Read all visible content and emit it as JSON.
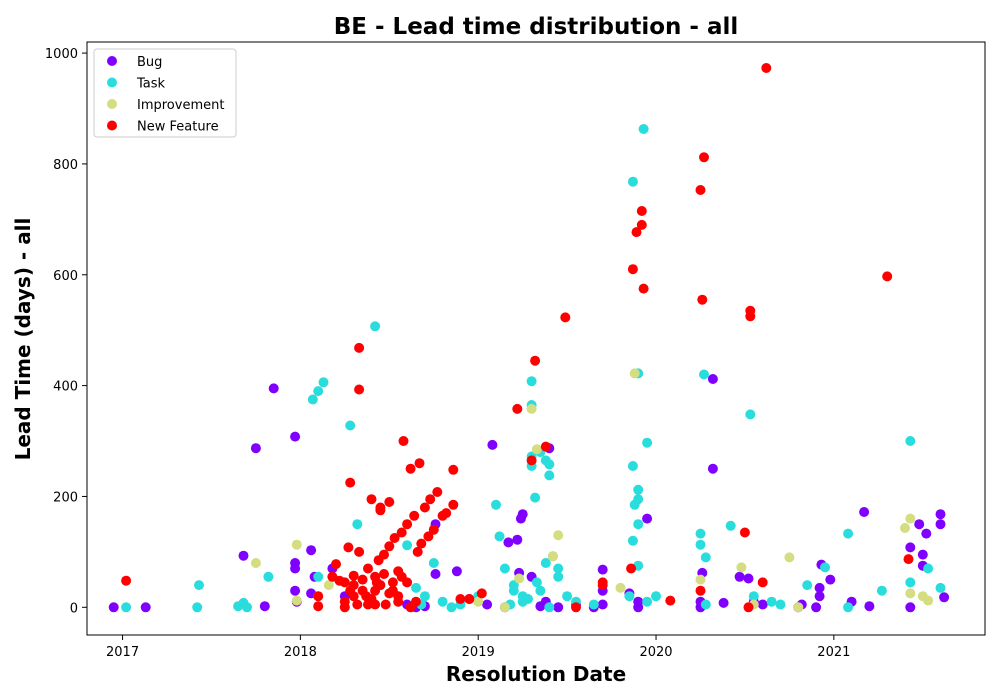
{
  "chart_data": {
    "type": "scatter",
    "title": "BE - Lead time distribution - all",
    "xlabel": "Resolution Date",
    "ylabel": "Lead Time (days) - all",
    "xlim": [
      2016.8,
      2021.85
    ],
    "ylim": [
      -50,
      1020
    ],
    "x_ticks": [
      2017,
      2018,
      2019,
      2020,
      2021
    ],
    "y_ticks": [
      0,
      200,
      400,
      600,
      800,
      1000
    ],
    "grid": false,
    "legend_position": "top-left",
    "series": [
      {
        "name": "Bug",
        "color": "#8000ff",
        "points": [
          [
            2016.95,
            0
          ],
          [
            2017.13,
            0
          ],
          [
            2017.68,
            93
          ],
          [
            2017.75,
            287
          ],
          [
            2017.8,
            2
          ],
          [
            2017.85,
            395
          ],
          [
            2017.97,
            308
          ],
          [
            2017.97,
            80
          ],
          [
            2017.97,
            70
          ],
          [
            2017.97,
            30
          ],
          [
            2018.06,
            103
          ],
          [
            2018.06,
            25
          ],
          [
            2017.98,
            10
          ],
          [
            2018.08,
            55
          ],
          [
            2018.18,
            70
          ],
          [
            2018.25,
            20
          ],
          [
            2018.4,
            10
          ],
          [
            2018.6,
            5
          ],
          [
            2018.65,
            0
          ],
          [
            2018.7,
            2
          ],
          [
            2018.76,
            60
          ],
          [
            2018.76,
            150
          ],
          [
            2018.88,
            65
          ],
          [
            2018.95,
            15
          ],
          [
            2019.05,
            5
          ],
          [
            2019.08,
            293
          ],
          [
            2019.15,
            0
          ],
          [
            2019.17,
            117
          ],
          [
            2019.22,
            122
          ],
          [
            2019.24,
            160
          ],
          [
            2019.25,
            168
          ],
          [
            2019.23,
            62
          ],
          [
            2019.3,
            55
          ],
          [
            2019.35,
            2
          ],
          [
            2019.38,
            10
          ],
          [
            2019.4,
            287
          ],
          [
            2019.45,
            0
          ],
          [
            2019.55,
            5
          ],
          [
            2019.65,
            0
          ],
          [
            2019.7,
            5
          ],
          [
            2019.7,
            68
          ],
          [
            2019.7,
            30
          ],
          [
            2019.9,
            0
          ],
          [
            2019.95,
            160
          ],
          [
            2019.9,
            10
          ],
          [
            2019.85,
            25
          ],
          [
            2020.25,
            10
          ],
          [
            2020.25,
            0
          ],
          [
            2020.26,
            62
          ],
          [
            2020.32,
            412
          ],
          [
            2020.32,
            250
          ],
          [
            2020.38,
            8
          ],
          [
            2020.47,
            55
          ],
          [
            2020.52,
            52
          ],
          [
            2020.55,
            10
          ],
          [
            2020.6,
            5
          ],
          [
            2020.8,
            0
          ],
          [
            2020.82,
            5
          ],
          [
            2020.9,
            0
          ],
          [
            2020.92,
            35
          ],
          [
            2020.93,
            77
          ],
          [
            2020.92,
            20
          ],
          [
            2020.98,
            50
          ],
          [
            2021.1,
            10
          ],
          [
            2021.17,
            172
          ],
          [
            2021.2,
            2
          ],
          [
            2021.43,
            108
          ],
          [
            2021.43,
            0
          ],
          [
            2021.48,
            150
          ],
          [
            2021.5,
            95
          ],
          [
            2021.5,
            75
          ],
          [
            2021.52,
            133
          ],
          [
            2021.6,
            168
          ],
          [
            2021.6,
            150
          ],
          [
            2021.62,
            18
          ]
        ]
      },
      {
        "name": "Task",
        "color": "#2adddd",
        "points": [
          [
            2017.02,
            0
          ],
          [
            2017.42,
            0
          ],
          [
            2017.43,
            40
          ],
          [
            2017.65,
            2
          ],
          [
            2017.68,
            8
          ],
          [
            2017.7,
            0
          ],
          [
            2017.82,
            55
          ],
          [
            2018.07,
            375
          ],
          [
            2018.1,
            390
          ],
          [
            2018.13,
            406
          ],
          [
            2018.1,
            55
          ],
          [
            2018.28,
            328
          ],
          [
            2018.32,
            150
          ],
          [
            2018.42,
            507
          ],
          [
            2018.6,
            112
          ],
          [
            2018.65,
            35
          ],
          [
            2018.7,
            20
          ],
          [
            2018.75,
            80
          ],
          [
            2018.8,
            10
          ],
          [
            2018.9,
            5
          ],
          [
            2019.0,
            20
          ],
          [
            2019.1,
            185
          ],
          [
            2019.12,
            128
          ],
          [
            2019.15,
            70
          ],
          [
            2019.2,
            30
          ],
          [
            2019.25,
            20
          ],
          [
            2019.3,
            408
          ],
          [
            2019.3,
            365
          ],
          [
            2019.3,
            272
          ],
          [
            2019.3,
            255
          ],
          [
            2019.32,
            198
          ],
          [
            2019.35,
            280
          ],
          [
            2019.38,
            265
          ],
          [
            2019.4,
            258
          ],
          [
            2019.4,
            238
          ],
          [
            2019.38,
            80
          ],
          [
            2019.42,
            92
          ],
          [
            2019.45,
            70
          ],
          [
            2019.45,
            55
          ],
          [
            2019.5,
            20
          ],
          [
            2019.55,
            10
          ],
          [
            2019.65,
            5
          ],
          [
            2019.85,
            20
          ],
          [
            2019.87,
            768
          ],
          [
            2019.87,
            255
          ],
          [
            2019.87,
            120
          ],
          [
            2019.9,
            212
          ],
          [
            2019.9,
            195
          ],
          [
            2019.88,
            185
          ],
          [
            2019.9,
            150
          ],
          [
            2019.9,
            75
          ],
          [
            2019.93,
            863
          ],
          [
            2019.95,
            297
          ],
          [
            2019.95,
            10
          ],
          [
            2019.9,
            422
          ],
          [
            2020.0,
            20
          ],
          [
            2020.25,
            133
          ],
          [
            2020.25,
            113
          ],
          [
            2020.28,
            90
          ],
          [
            2020.27,
            420
          ],
          [
            2020.28,
            5
          ],
          [
            2020.42,
            147
          ],
          [
            2020.53,
            348
          ],
          [
            2020.55,
            20
          ],
          [
            2020.65,
            10
          ],
          [
            2020.7,
            5
          ],
          [
            2020.85,
            40
          ],
          [
            2020.95,
            72
          ],
          [
            2021.08,
            133
          ],
          [
            2021.08,
            0
          ],
          [
            2021.27,
            30
          ],
          [
            2021.43,
            300
          ],
          [
            2021.43,
            45
          ],
          [
            2021.53,
            70
          ],
          [
            2021.6,
            35
          ],
          [
            2019.2,
            40
          ],
          [
            2019.25,
            10
          ],
          [
            2019.35,
            30
          ],
          [
            2019.4,
            0
          ],
          [
            2019.28,
            15
          ],
          [
            2019.33,
            45
          ],
          [
            2019.18,
            5
          ],
          [
            2018.85,
            0
          ],
          [
            2018.68,
            5
          ]
        ]
      },
      {
        "name": "Improvement",
        "color": "#d4dd80",
        "points": [
          [
            2017.75,
            80
          ],
          [
            2017.98,
            113
          ],
          [
            2017.98,
            12
          ],
          [
            2018.1,
            20
          ],
          [
            2018.16,
            40
          ],
          [
            2019.0,
            10
          ],
          [
            2019.15,
            0
          ],
          [
            2019.23,
            52
          ],
          [
            2019.3,
            358
          ],
          [
            2019.33,
            285
          ],
          [
            2019.42,
            92
          ],
          [
            2019.45,
            130
          ],
          [
            2019.8,
            35
          ],
          [
            2019.88,
            422
          ],
          [
            2020.25,
            50
          ],
          [
            2020.48,
            72
          ],
          [
            2020.55,
            5
          ],
          [
            2020.75,
            90
          ],
          [
            2020.8,
            0
          ],
          [
            2021.4,
            143
          ],
          [
            2021.43,
            160
          ],
          [
            2021.43,
            25
          ],
          [
            2021.5,
            20
          ],
          [
            2021.53,
            12
          ]
        ]
      },
      {
        "name": "New Feature",
        "color": "#ff0000",
        "points": [
          [
            2017.02,
            48
          ],
          [
            2018.1,
            20
          ],
          [
            2018.1,
            2
          ],
          [
            2018.2,
            78
          ],
          [
            2018.18,
            55
          ],
          [
            2018.22,
            48
          ],
          [
            2018.25,
            10
          ],
          [
            2018.25,
            0
          ],
          [
            2018.27,
            108
          ],
          [
            2018.28,
            225
          ],
          [
            2018.3,
            57
          ],
          [
            2018.3,
            40
          ],
          [
            2018.33,
            468
          ],
          [
            2018.33,
            393
          ],
          [
            2018.33,
            100
          ],
          [
            2018.35,
            30
          ],
          [
            2018.37,
            20
          ],
          [
            2018.38,
            5
          ],
          [
            2018.38,
            70
          ],
          [
            2018.4,
            195
          ],
          [
            2018.42,
            55
          ],
          [
            2018.43,
            45
          ],
          [
            2018.44,
            85
          ],
          [
            2018.45,
            175
          ],
          [
            2018.45,
            180
          ],
          [
            2018.47,
            95
          ],
          [
            2018.48,
            5
          ],
          [
            2018.5,
            110
          ],
          [
            2018.5,
            190
          ],
          [
            2018.52,
            30
          ],
          [
            2018.53,
            125
          ],
          [
            2018.55,
            65
          ],
          [
            2018.55,
            20
          ],
          [
            2018.57,
            135
          ],
          [
            2018.58,
            300
          ],
          [
            2018.6,
            45
          ],
          [
            2018.6,
            150
          ],
          [
            2018.62,
            250
          ],
          [
            2018.62,
            0
          ],
          [
            2018.64,
            165
          ],
          [
            2018.65,
            10
          ],
          [
            2018.66,
            100
          ],
          [
            2018.67,
            260
          ],
          [
            2018.68,
            115
          ],
          [
            2018.7,
            180
          ],
          [
            2018.72,
            128
          ],
          [
            2018.73,
            195
          ],
          [
            2018.75,
            140
          ],
          [
            2018.77,
            208
          ],
          [
            2018.8,
            165
          ],
          [
            2018.82,
            170
          ],
          [
            2018.86,
            185
          ],
          [
            2018.86,
            248
          ],
          [
            2018.9,
            15
          ],
          [
            2018.95,
            15
          ],
          [
            2019.02,
            25
          ],
          [
            2019.22,
            358
          ],
          [
            2019.3,
            265
          ],
          [
            2019.32,
            445
          ],
          [
            2019.38,
            290
          ],
          [
            2019.49,
            523
          ],
          [
            2019.55,
            0
          ],
          [
            2019.7,
            45
          ],
          [
            2019.7,
            40
          ],
          [
            2019.86,
            70
          ],
          [
            2019.87,
            610
          ],
          [
            2019.89,
            677
          ],
          [
            2019.92,
            715
          ],
          [
            2019.92,
            690
          ],
          [
            2019.93,
            575
          ],
          [
            2020.08,
            12
          ],
          [
            2020.25,
            30
          ],
          [
            2020.25,
            753
          ],
          [
            2020.26,
            555
          ],
          [
            2020.27,
            812
          ],
          [
            2020.5,
            135
          ],
          [
            2020.52,
            0
          ],
          [
            2020.53,
            535
          ],
          [
            2020.53,
            525
          ],
          [
            2020.6,
            45
          ],
          [
            2020.62,
            973
          ],
          [
            2021.3,
            597
          ],
          [
            2021.42,
            87
          ],
          [
            2018.3,
            20
          ],
          [
            2018.32,
            5
          ],
          [
            2018.35,
            50
          ],
          [
            2018.4,
            15
          ],
          [
            2018.42,
            30
          ],
          [
            2018.45,
            40
          ],
          [
            2018.47,
            60
          ],
          [
            2018.5,
            25
          ],
          [
            2018.52,
            45
          ],
          [
            2018.55,
            10
          ],
          [
            2018.57,
            55
          ],
          [
            2018.42,
            5
          ],
          [
            2018.28,
            30
          ],
          [
            2018.25,
            45
          ]
        ]
      }
    ]
  }
}
